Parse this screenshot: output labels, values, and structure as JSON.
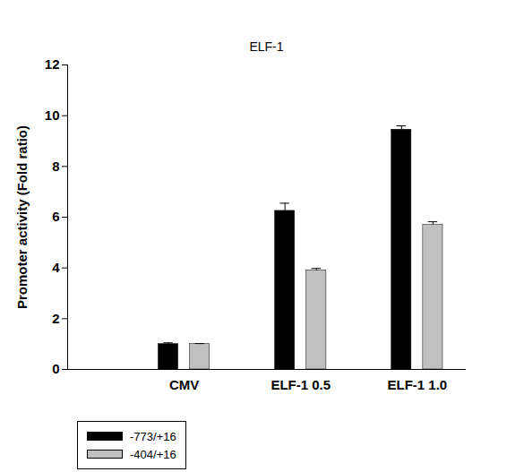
{
  "chart_data": {
    "type": "bar",
    "title": "ELF-1",
    "y_label": "Promoter activity (Fold ratio)",
    "categories": [
      "CMV",
      "ELF-1 0.5",
      "ELF-1 1.0"
    ],
    "series": [
      {
        "name": "-773/+16",
        "color": "#000000",
        "values": [
          1.0,
          6.25,
          9.45
        ],
        "errors": [
          0.05,
          0.3,
          0.15
        ]
      },
      {
        "name": "-404/+16",
        "color": "#c0c0c0",
        "values": [
          1.0,
          3.9,
          5.7
        ],
        "errors": [
          0.02,
          0.08,
          0.12
        ]
      }
    ],
    "ylim": [
      0,
      12
    ],
    "yticks": [
      0,
      2,
      4,
      6,
      8,
      10,
      12
    ],
    "legend": "bottom left"
  }
}
